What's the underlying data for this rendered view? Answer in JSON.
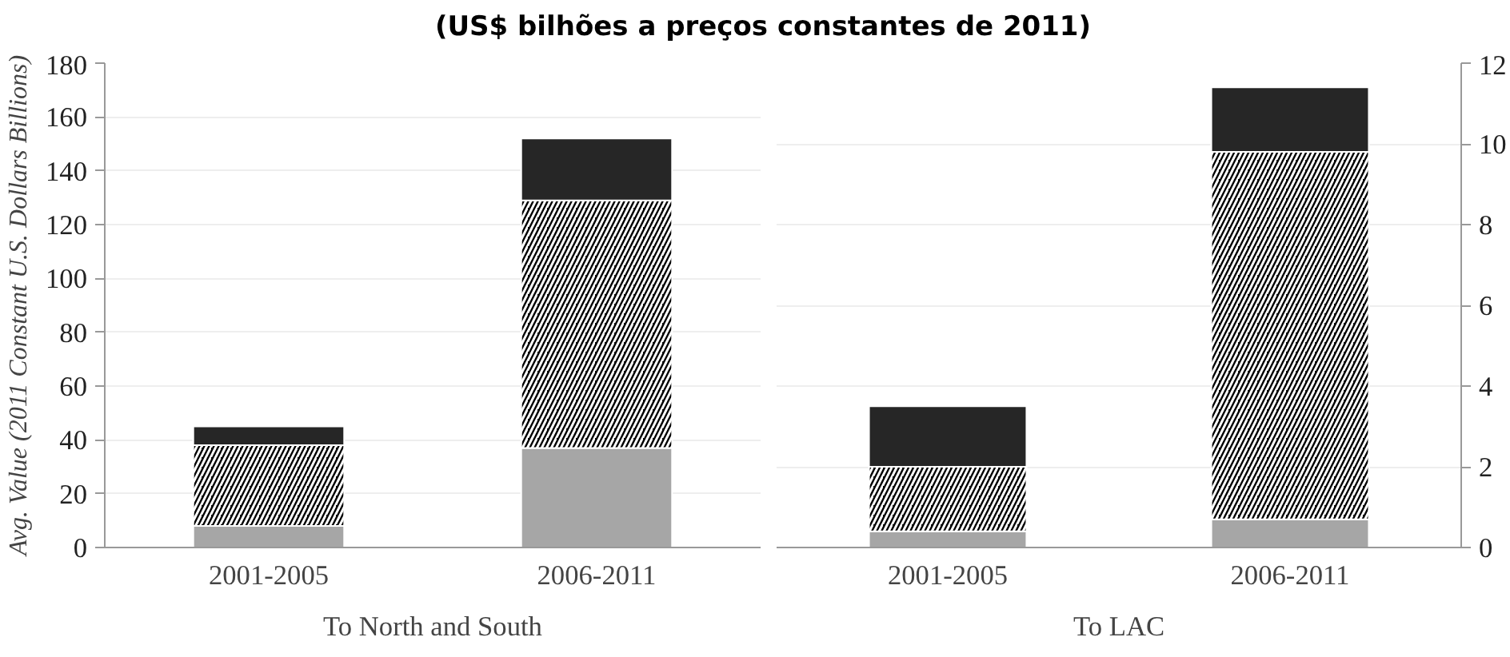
{
  "chart_data": [
    {
      "type": "bar",
      "title": "(US$ bilhões a preços constantes de 2011)",
      "stacked": true,
      "categories": [
        "2001-2005",
        "2006-2011"
      ],
      "xlabel": "To North and South",
      "ylabel": "Avg. Value (2011 Constant U.S. Dollars Billions)",
      "ylim": [
        0,
        180
      ],
      "yticks": [
        0,
        20,
        40,
        60,
        80,
        100,
        120,
        140,
        160,
        180
      ],
      "grid": "y",
      "series": [
        {
          "color": "#a6a6a6",
          "values": [
            8,
            37
          ]
        },
        {
          "color": "#000000",
          "values": [
            30,
            92
          ]
        },
        {
          "color": "#262626",
          "values": [
            7,
            23
          ]
        }
      ]
    },
    {
      "type": "bar",
      "stacked": true,
      "categories": [
        "2001-2005",
        "2006-2011"
      ],
      "xlabel": "To LAC",
      "ylim": [
        0,
        12
      ],
      "yticks": [
        0,
        2,
        4,
        6,
        8,
        10,
        12
      ],
      "grid": "y",
      "series": [
        {
          "color": "#a6a6a6",
          "values": [
            0.4,
            0.7
          ]
        },
        {
          "color": "#000000",
          "values": [
            1.6,
            9.1
          ]
        },
        {
          "color": "#262626",
          "values": [
            1.5,
            1.6
          ]
        }
      ]
    }
  ]
}
